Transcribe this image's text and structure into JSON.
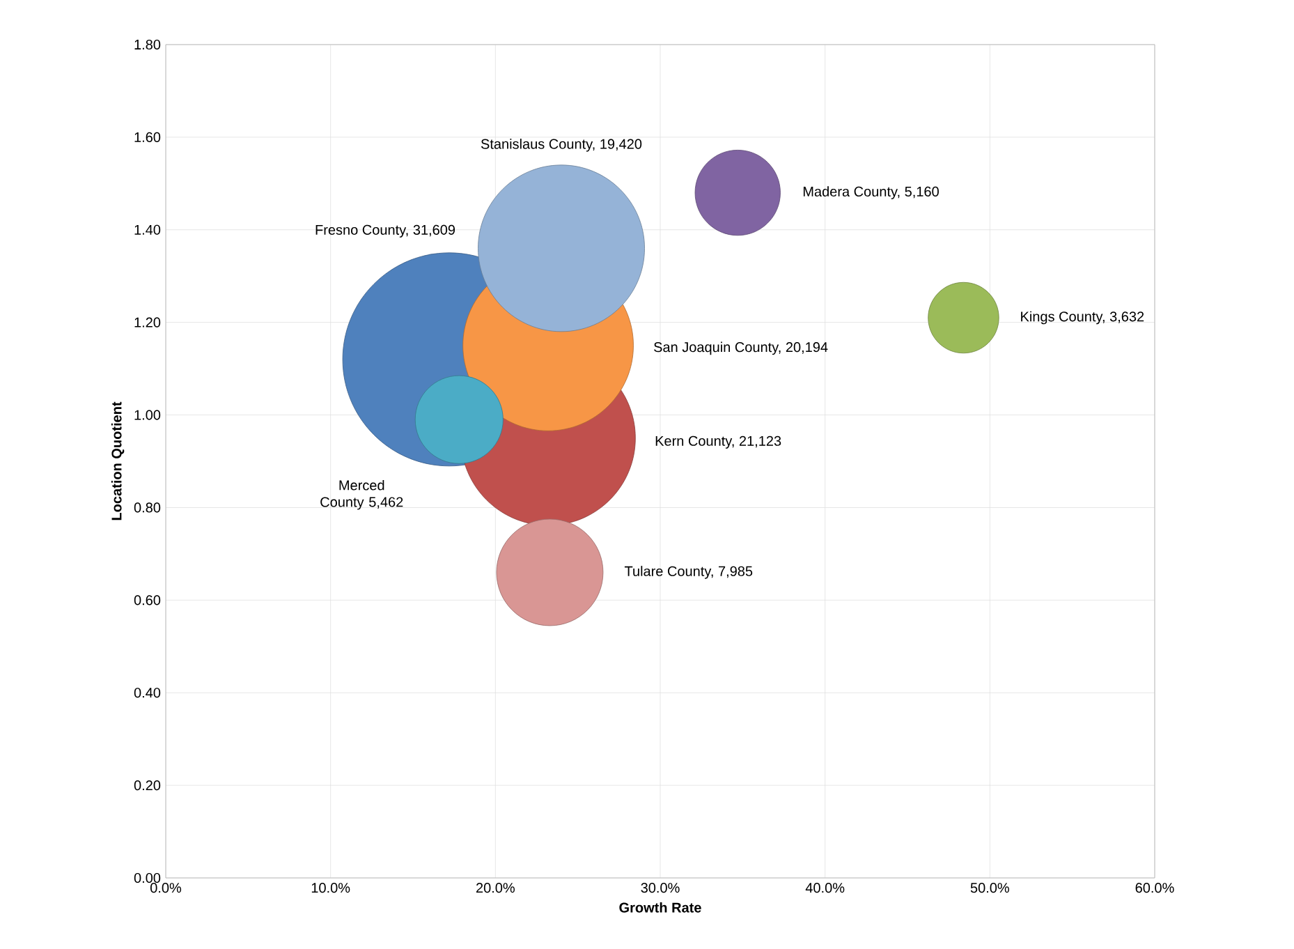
{
  "chart_data": {
    "type": "bubble",
    "xlabel": "Growth Rate",
    "ylabel": "Location Quotient",
    "xlim": [
      0,
      60
    ],
    "ylim": [
      0,
      1.8
    ],
    "xticks": [
      {
        "value": 0,
        "label": "0.0%"
      },
      {
        "value": 10,
        "label": "10.0%"
      },
      {
        "value": 20,
        "label": "20.0%"
      },
      {
        "value": 30,
        "label": "30.0%"
      },
      {
        "value": 40,
        "label": "40.0%"
      },
      {
        "value": 50,
        "label": "50.0%"
      },
      {
        "value": 60,
        "label": "60.0%"
      }
    ],
    "yticks": [
      {
        "value": 0,
        "label": "0.00"
      },
      {
        "value": 0.2,
        "label": "0.20"
      },
      {
        "value": 0.4,
        "label": "0.40"
      },
      {
        "value": 0.6,
        "label": "0.60"
      },
      {
        "value": 0.8,
        "label": "0.80"
      },
      {
        "value": 1.0,
        "label": "1.00"
      },
      {
        "value": 1.2,
        "label": "1.20"
      },
      {
        "value": 1.4,
        "label": "1.40"
      },
      {
        "value": 1.6,
        "label": "1.60"
      },
      {
        "value": 1.8,
        "label": "1.80"
      }
    ],
    "grid": true,
    "series": [
      {
        "color": "#4f81bd",
        "x": [
          17.2
        ],
        "values": [
          1.12
        ],
        "sizes": [
          1
        ]
      },
      {
        "color": "#c0504d",
        "x": [
          23.2
        ],
        "values": [
          0.95
        ],
        "sizes": [
          0.67
        ]
      },
      {
        "color": "#f79646",
        "x": [
          23.2
        ],
        "values": [
          1.15
        ],
        "sizes": [
          0.64
        ]
      },
      {
        "color": "#95b3d7",
        "x": [
          24.0
        ],
        "values": [
          1.36
        ],
        "sizes": [
          0.61
        ]
      },
      {
        "color": "#4bacc6",
        "x": [
          17.8
        ],
        "values": [
          0.99
        ],
        "sizes": [
          0.17
        ]
      },
      {
        "color": "#d99694",
        "x": [
          23.3
        ],
        "values": [
          0.66
        ],
        "sizes": [
          0.25
        ]
      },
      {
        "color": "#8064a2",
        "x": [
          34.7
        ],
        "values": [
          1.48
        ],
        "sizes": [
          0.16
        ]
      },
      {
        "color": "#9bbb59",
        "x": [
          48.4
        ],
        "values": [
          1.21
        ],
        "sizes": [
          0.11
        ]
      }
    ],
    "annotations": [
      "Fresno County, 31,609",
      "Kern County, 21,123",
      "San Joaquin County, 20,194",
      "Stanislaus County, 19,420",
      "Merced County 5,462",
      "Tulare County, 7,985",
      "Madera County, 5,160",
      "Kings County, 3,632"
    ]
  }
}
